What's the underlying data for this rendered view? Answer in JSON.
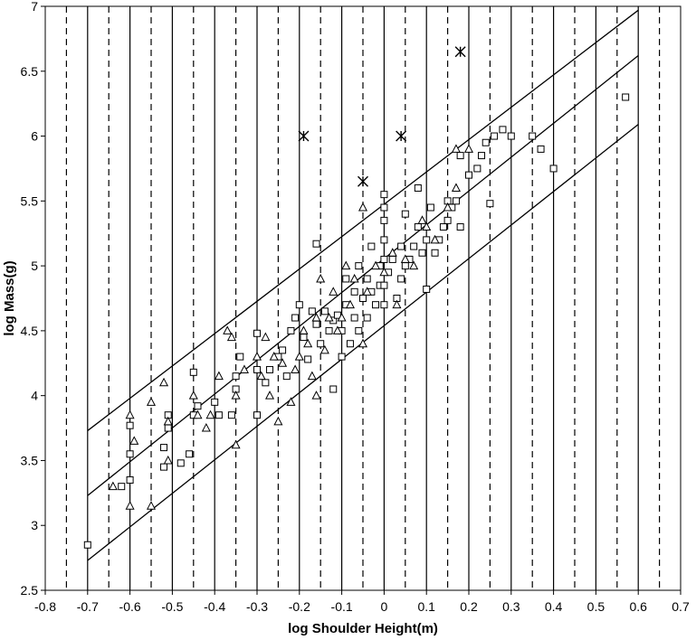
{
  "chart_data": {
    "type": "scatter",
    "xlabel": "log Shoulder Height(m)",
    "ylabel": "log Mass(g)",
    "xlim": [
      -0.8,
      0.7
    ],
    "ylim": [
      2.5,
      7
    ],
    "x_ticks": [
      "-0.8",
      "-0.7",
      "-0.6",
      "-0.5",
      "-0.4",
      "-0.3",
      "-0.2",
      "-0.1",
      "0",
      "0.1",
      "0.2",
      "0.3",
      "0.4",
      "0.5",
      "0.6",
      "0.7"
    ],
    "y_ticks": [
      "2.5",
      "3",
      "3.5",
      "4",
      "4.5",
      "5",
      "5.5",
      "6",
      "6.5",
      "7"
    ],
    "grid": {
      "solid_vertical_x": [
        -0.7,
        -0.6,
        -0.5,
        -0.4,
        -0.3,
        -0.2,
        -0.1,
        0,
        0.1,
        0.2,
        0.3,
        0.4,
        0.5,
        0.6
      ],
      "dashed_vertical_x": [
        -0.75,
        -0.65,
        -0.55,
        -0.45,
        -0.35,
        -0.25,
        -0.15,
        -0.05,
        0.05,
        0.15,
        0.25,
        0.35,
        0.45,
        0.55,
        0.65
      ]
    },
    "reference_lines": [
      {
        "x": [
          -0.7,
          0.6
        ],
        "y": [
          3.73,
          6.97
        ]
      },
      {
        "x": [
          -0.7,
          0.6
        ],
        "y": [
          3.23,
          6.62
        ]
      },
      {
        "x": [
          -0.7,
          0.6
        ],
        "y": [
          2.73,
          6.09
        ]
      }
    ],
    "series": [
      {
        "marker": "square",
        "points": [
          [
            -0.7,
            2.85
          ],
          [
            -0.62,
            3.3
          ],
          [
            -0.6,
            3.35
          ],
          [
            -0.6,
            3.77
          ],
          [
            -0.6,
            3.55
          ],
          [
            -0.52,
            3.6
          ],
          [
            -0.52,
            3.45
          ],
          [
            -0.51,
            3.85
          ],
          [
            -0.51,
            3.75
          ],
          [
            -0.48,
            3.48
          ],
          [
            -0.46,
            3.55
          ],
          [
            -0.45,
            3.85
          ],
          [
            -0.45,
            4.18
          ],
          [
            -0.44,
            3.92
          ],
          [
            -0.4,
            3.95
          ],
          [
            -0.39,
            3.85
          ],
          [
            -0.36,
            3.85
          ],
          [
            -0.35,
            4.05
          ],
          [
            -0.35,
            4.15
          ],
          [
            -0.34,
            4.3
          ],
          [
            -0.3,
            3.85
          ],
          [
            -0.3,
            4.2
          ],
          [
            -0.3,
            4.48
          ],
          [
            -0.28,
            4.1
          ],
          [
            -0.27,
            4.2
          ],
          [
            -0.25,
            4.3
          ],
          [
            -0.24,
            4.35
          ],
          [
            -0.23,
            4.15
          ],
          [
            -0.22,
            4.5
          ],
          [
            -0.21,
            4.6
          ],
          [
            -0.2,
            4.7
          ],
          [
            -0.19,
            4.45
          ],
          [
            -0.18,
            4.28
          ],
          [
            -0.17,
            4.65
          ],
          [
            -0.16,
            4.55
          ],
          [
            -0.16,
            5.17
          ],
          [
            -0.15,
            4.4
          ],
          [
            -0.14,
            4.65
          ],
          [
            -0.13,
            4.5
          ],
          [
            -0.12,
            4.05
          ],
          [
            -0.12,
            4.58
          ],
          [
            -0.11,
            4.62
          ],
          [
            -0.1,
            4.3
          ],
          [
            -0.1,
            4.5
          ],
          [
            -0.09,
            4.7
          ],
          [
            -0.09,
            4.9
          ],
          [
            -0.08,
            4.4
          ],
          [
            -0.07,
            4.6
          ],
          [
            -0.07,
            4.8
          ],
          [
            -0.06,
            5.0
          ],
          [
            -0.06,
            4.5
          ],
          [
            -0.05,
            4.75
          ],
          [
            -0.04,
            4.9
          ],
          [
            -0.04,
            4.6
          ],
          [
            -0.03,
            5.15
          ],
          [
            -0.03,
            4.8
          ],
          [
            -0.02,
            4.7
          ],
          [
            -0.01,
            4.85
          ],
          [
            -0.01,
            5.0
          ],
          [
            0,
            4.7
          ],
          [
            0,
            4.85
          ],
          [
            0,
            5.05
          ],
          [
            0,
            5.2
          ],
          [
            0,
            5.35
          ],
          [
            0,
            5.45
          ],
          [
            0,
            5.55
          ],
          [
            0.01,
            4.95
          ],
          [
            0.02,
            5.05
          ],
          [
            0.03,
            4.75
          ],
          [
            0.04,
            4.9
          ],
          [
            0.04,
            5.15
          ],
          [
            0.05,
            5.0
          ],
          [
            0.05,
            5.4
          ],
          [
            0.06,
            5.05
          ],
          [
            0.07,
            5.15
          ],
          [
            0.08,
            5.6
          ],
          [
            0.08,
            5.3
          ],
          [
            0.09,
            5.1
          ],
          [
            0.1,
            4.82
          ],
          [
            0.1,
            5.2
          ],
          [
            0.11,
            5.45
          ],
          [
            0.12,
            5.1
          ],
          [
            0.13,
            5.2
          ],
          [
            0.14,
            5.3
          ],
          [
            0.15,
            5.5
          ],
          [
            0.15,
            5.35
          ],
          [
            0.16,
            5.45
          ],
          [
            0.17,
            5.5
          ],
          [
            0.18,
            5.3
          ],
          [
            0.18,
            5.85
          ],
          [
            0.2,
            5.7
          ],
          [
            0.22,
            5.75
          ],
          [
            0.23,
            5.85
          ],
          [
            0.24,
            5.95
          ],
          [
            0.25,
            5.48
          ],
          [
            0.26,
            6.0
          ],
          [
            0.28,
            6.05
          ],
          [
            0.3,
            6.0
          ],
          [
            0.35,
            6.0
          ],
          [
            0.37,
            5.9
          ],
          [
            0.4,
            5.75
          ],
          [
            0.57,
            6.3
          ]
        ]
      },
      {
        "marker": "triangle",
        "points": [
          [
            -0.64,
            3.3
          ],
          [
            -0.6,
            3.85
          ],
          [
            -0.59,
            3.65
          ],
          [
            -0.6,
            3.15
          ],
          [
            -0.55,
            3.15
          ],
          [
            -0.55,
            3.95
          ],
          [
            -0.52,
            4.1
          ],
          [
            -0.51,
            3.8
          ],
          [
            -0.51,
            3.5
          ],
          [
            -0.45,
            4.0
          ],
          [
            -0.44,
            3.85
          ],
          [
            -0.42,
            3.75
          ],
          [
            -0.41,
            3.85
          ],
          [
            -0.39,
            4.15
          ],
          [
            -0.37,
            4.5
          ],
          [
            -0.36,
            4.45
          ],
          [
            -0.35,
            4.0
          ],
          [
            -0.35,
            3.62
          ],
          [
            -0.33,
            4.2
          ],
          [
            -0.3,
            4.3
          ],
          [
            -0.29,
            4.15
          ],
          [
            -0.28,
            4.45
          ],
          [
            -0.27,
            4.0
          ],
          [
            -0.26,
            4.3
          ],
          [
            -0.25,
            3.8
          ],
          [
            -0.24,
            4.25
          ],
          [
            -0.22,
            3.95
          ],
          [
            -0.21,
            4.2
          ],
          [
            -0.2,
            4.3
          ],
          [
            -0.19,
            4.5
          ],
          [
            -0.18,
            4.4
          ],
          [
            -0.17,
            4.15
          ],
          [
            -0.16,
            4.0
          ],
          [
            -0.16,
            4.6
          ],
          [
            -0.15,
            4.9
          ],
          [
            -0.14,
            4.35
          ],
          [
            -0.13,
            4.6
          ],
          [
            -0.12,
            4.8
          ],
          [
            -0.11,
            4.5
          ],
          [
            -0.1,
            4.6
          ],
          [
            -0.09,
            5.0
          ],
          [
            -0.08,
            4.7
          ],
          [
            -0.07,
            4.9
          ],
          [
            -0.05,
            4.4
          ],
          [
            -0.05,
            5.45
          ],
          [
            -0.04,
            4.8
          ],
          [
            -0.02,
            5.0
          ],
          [
            0,
            4.95
          ],
          [
            0.02,
            5.1
          ],
          [
            0.03,
            4.7
          ],
          [
            0.05,
            5.05
          ],
          [
            0.07,
            5.0
          ],
          [
            0.09,
            5.35
          ],
          [
            0.1,
            5.3
          ],
          [
            0.12,
            5.2
          ],
          [
            0.15,
            5.45
          ],
          [
            0.17,
            5.6
          ],
          [
            0.17,
            5.9
          ],
          [
            0.2,
            5.9
          ]
        ]
      },
      {
        "marker": "cross",
        "points": [
          [
            -0.19,
            6.0
          ],
          [
            -0.05,
            5.65
          ],
          [
            0.04,
            6.0
          ],
          [
            0.18,
            6.65
          ]
        ]
      }
    ]
  }
}
